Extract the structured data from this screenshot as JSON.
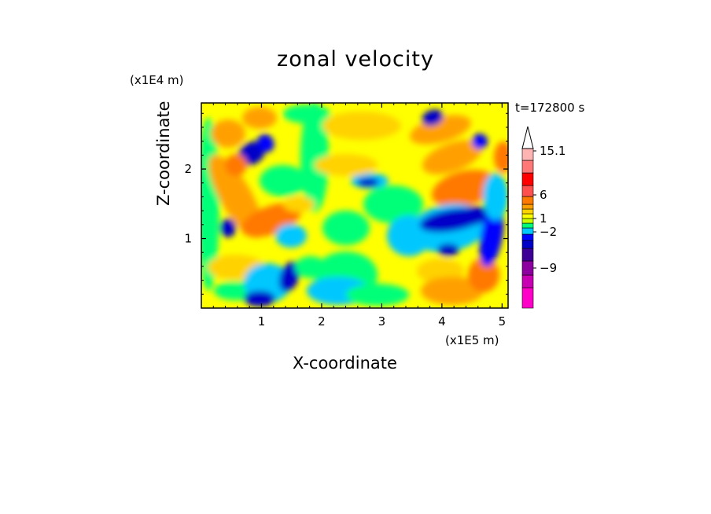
{
  "chart_data": {
    "type": "heatmap",
    "title": "zonal velocity",
    "xlabel": "X-coordinate",
    "ylabel": "Z-coordinate",
    "x_unit": "(x1E5 m)",
    "z_unit": "(x1E4 m)",
    "time_label": "t=172800 s",
    "xlim": [
      0,
      5.1
    ],
    "ylim": [
      0,
      2.95
    ],
    "x_ticks": [
      1,
      2,
      3,
      4,
      5
    ],
    "y_ticks": [
      1,
      2
    ],
    "colorbar": {
      "colors": [
        "#ff00c8",
        "#c800b4",
        "#8c00a0",
        "#3c0096",
        "#0000c8",
        "#0000ff",
        "#00c8ff",
        "#00ff78",
        "#c8ff00",
        "#ffff00",
        "#ffd200",
        "#ffa000",
        "#ff7800",
        "#ff5050",
        "#ff0000",
        "#ff7878",
        "#ffb4b4"
      ],
      "tick_labels": [
        {
          "value": "15.1",
          "level": 15.1
        },
        {
          "value": "6",
          "level": 6
        },
        {
          "value": "1",
          "level": 1
        },
        {
          "value": "−2",
          "level": -2
        },
        {
          "value": "−9",
          "level": -9
        }
      ],
      "extend_top": true
    }
  }
}
